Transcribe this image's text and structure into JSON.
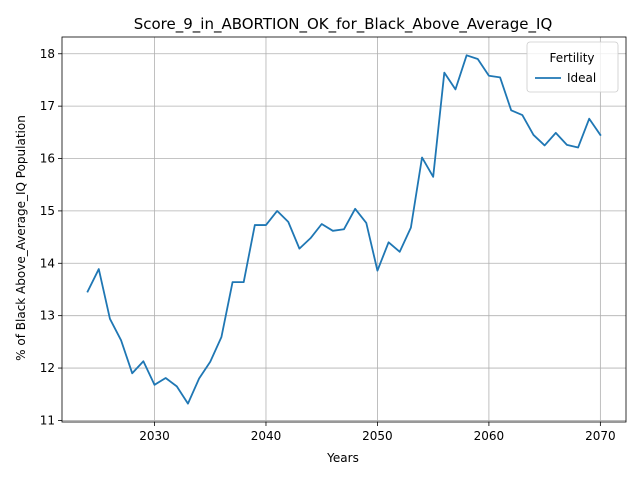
{
  "chart_data": {
    "type": "line",
    "title": "Score_9_in_ABORTION_OK_for_Black_Above_Average_IQ",
    "xlabel": "Years",
    "ylabel": "% of Black Above_Average_IQ Population",
    "xlim": [
      2021.7,
      2072.3
    ],
    "ylim": [
      10.97,
      18.32
    ],
    "grid": true,
    "legend": {
      "title": "Fertility",
      "placement": "top-right"
    },
    "x_ticks": [
      2030,
      2040,
      2050,
      2060,
      2070
    ],
    "y_ticks": [
      11,
      12,
      13,
      14,
      15,
      16,
      17,
      18
    ],
    "x": [
      2024,
      2025,
      2026,
      2027,
      2028,
      2029,
      2030,
      2031,
      2032,
      2033,
      2034,
      2035,
      2036,
      2037,
      2038,
      2039,
      2040,
      2041,
      2042,
      2043,
      2044,
      2045,
      2046,
      2047,
      2048,
      2049,
      2050,
      2051,
      2052,
      2053,
      2054,
      2055,
      2056,
      2057,
      2058,
      2059,
      2060,
      2061,
      2062,
      2063,
      2064,
      2065,
      2066,
      2067,
      2068,
      2069,
      2070
    ],
    "series": [
      {
        "name": "Ideal",
        "color": "#1f77b4",
        "values": [
          13.46,
          13.89,
          12.94,
          12.53,
          11.9,
          12.13,
          11.68,
          11.81,
          11.65,
          11.32,
          11.8,
          12.12,
          12.59,
          13.64,
          13.64,
          14.73,
          14.73,
          15.0,
          14.79,
          14.28,
          14.48,
          14.75,
          14.62,
          14.65,
          15.04,
          14.77,
          13.86,
          14.4,
          14.22,
          14.68,
          16.02,
          15.65,
          17.64,
          17.32,
          17.97,
          17.9,
          17.58,
          17.55,
          16.92,
          16.83,
          16.45,
          16.25,
          16.49,
          16.26,
          16.21,
          16.76,
          16.45
        ]
      }
    ]
  }
}
